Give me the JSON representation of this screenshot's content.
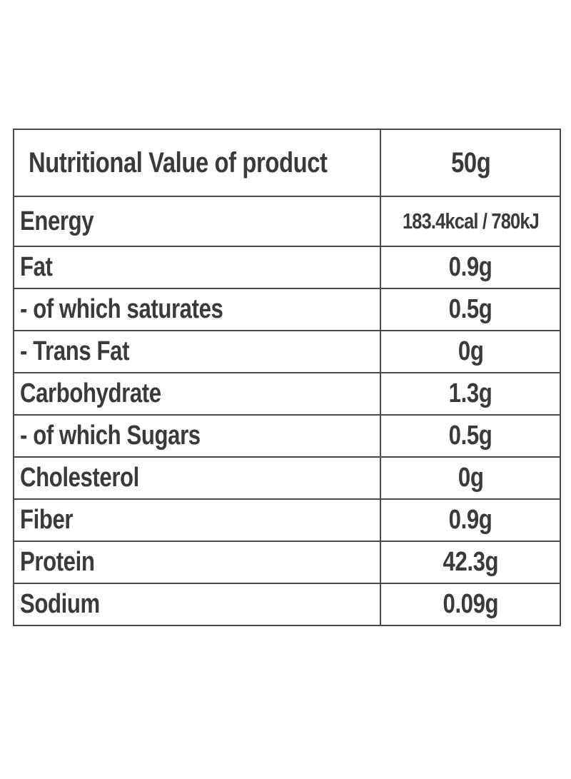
{
  "table": {
    "header": {
      "label": "Nutritional Value of product",
      "value": "50g"
    },
    "rows": [
      {
        "label": "Energy",
        "value": "183.4kcal / 780kJ"
      },
      {
        "label": "Fat",
        "value": "0.9g"
      },
      {
        "label": "- of which saturates",
        "value": "0.5g"
      },
      {
        "label": "- Trans Fat",
        "value": "0g"
      },
      {
        "label": "Carbohydrate",
        "value": "1.3g"
      },
      {
        "label": "- of which Sugars",
        "value": "0.5g"
      },
      {
        "label": "Cholesterol",
        "value": "0g"
      },
      {
        "label": "Fiber",
        "value": "0.9g"
      },
      {
        "label": "Protein",
        "value": "42.3g"
      },
      {
        "label": "Sodium",
        "value": "0.09g"
      }
    ]
  }
}
